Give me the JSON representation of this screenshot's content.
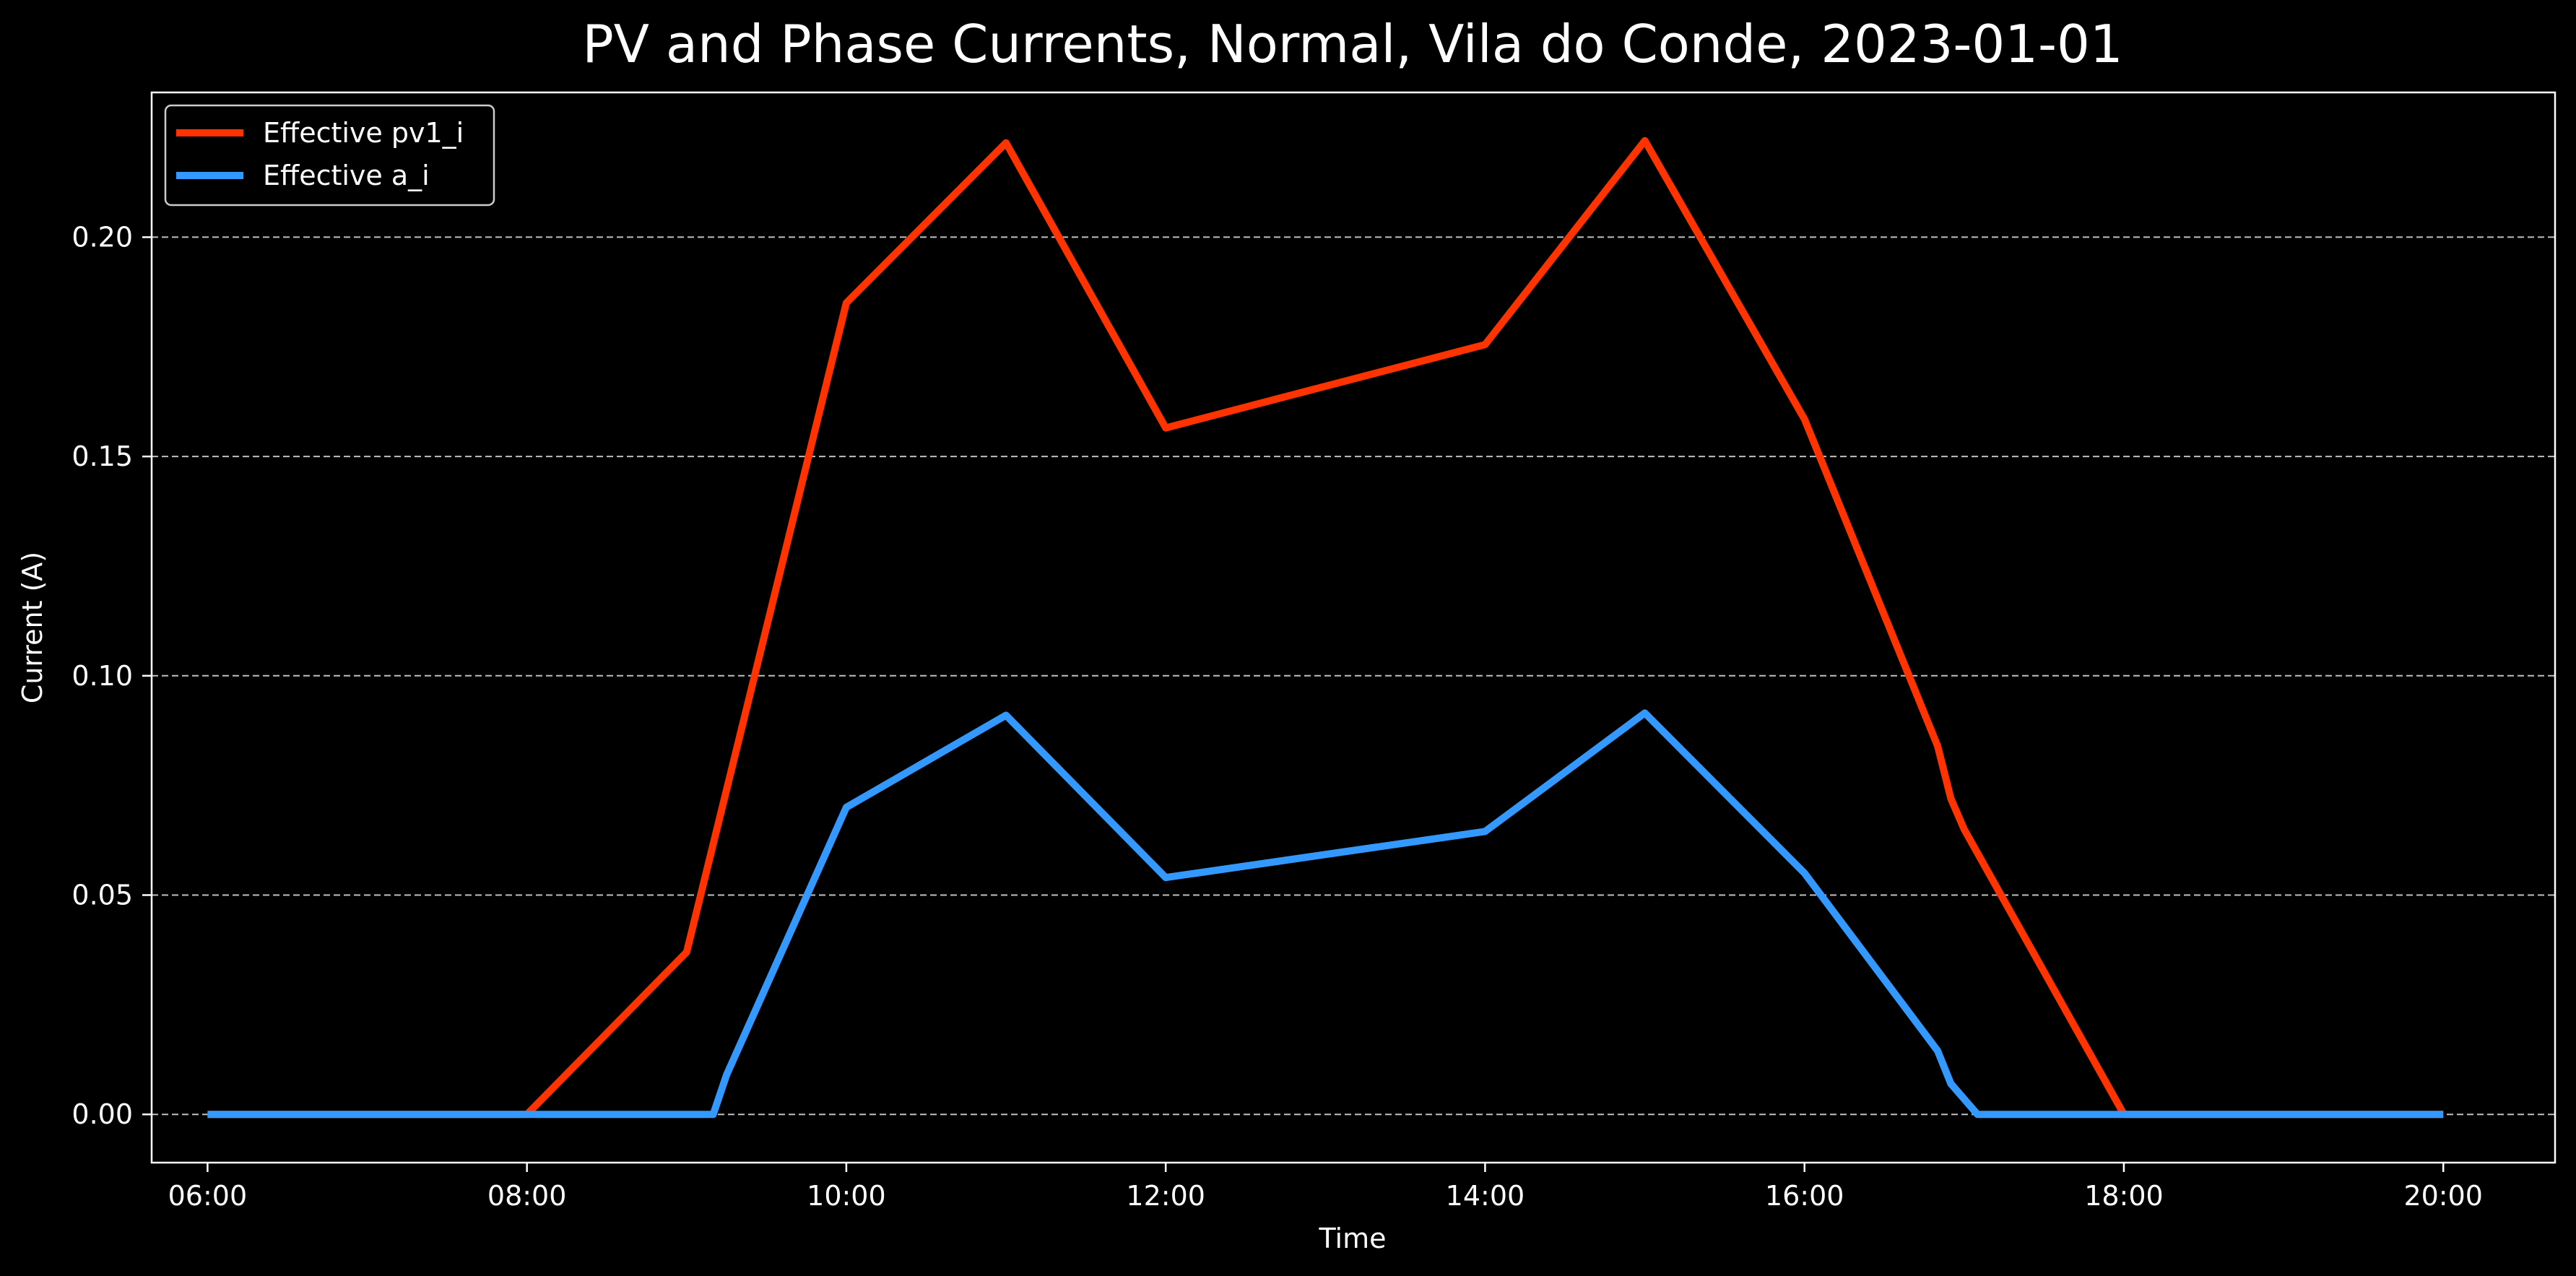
{
  "chart_data": {
    "type": "line",
    "title": "PV and Phase Currents, Normal, Vila do Conde, 2023-01-01",
    "xlabel": "Time",
    "ylabel": "Current (A)",
    "xlim": [
      "05:39",
      "20:42"
    ],
    "ylim": [
      -0.011,
      0.233
    ],
    "x_ticks": [
      "06:00",
      "08:00",
      "10:00",
      "12:00",
      "14:00",
      "16:00",
      "18:00",
      "20:00"
    ],
    "y_ticks": [
      "0.00",
      "0.05",
      "0.10",
      "0.15",
      "0.20"
    ],
    "grid": "horizontal, dashed",
    "legend_position": "top-left",
    "series": [
      {
        "name": "Effective pv1_i",
        "color": "#ff3300",
        "points": [
          {
            "x": "06:00",
            "y": 0.0
          },
          {
            "x": "08:00",
            "y": 0.0
          },
          {
            "x": "09:00",
            "y": 0.037
          },
          {
            "x": "10:00",
            "y": 0.185
          },
          {
            "x": "11:00",
            "y": 0.2215
          },
          {
            "x": "12:00",
            "y": 0.1565
          },
          {
            "x": "14:00",
            "y": 0.1755
          },
          {
            "x": "15:00",
            "y": 0.222
          },
          {
            "x": "16:00",
            "y": 0.1585
          },
          {
            "x": "16:50",
            "y": 0.084
          },
          {
            "x": "16:55",
            "y": 0.072
          },
          {
            "x": "17:00",
            "y": 0.065
          },
          {
            "x": "18:00",
            "y": 0.0
          },
          {
            "x": "20:00",
            "y": 0.0
          }
        ]
      },
      {
        "name": "Effective a_i",
        "color": "#3399ff",
        "points": [
          {
            "x": "06:00",
            "y": 0.0
          },
          {
            "x": "09:10",
            "y": 0.0
          },
          {
            "x": "09:15",
            "y": 0.009
          },
          {
            "x": "10:00",
            "y": 0.07
          },
          {
            "x": "11:00",
            "y": 0.091
          },
          {
            "x": "12:00",
            "y": 0.054
          },
          {
            "x": "14:00",
            "y": 0.0645
          },
          {
            "x": "15:00",
            "y": 0.0915
          },
          {
            "x": "16:00",
            "y": 0.055
          },
          {
            "x": "16:50",
            "y": 0.0145
          },
          {
            "x": "16:55",
            "y": 0.007
          },
          {
            "x": "17:05",
            "y": 0.0
          },
          {
            "x": "20:00",
            "y": 0.0
          }
        ]
      }
    ]
  }
}
